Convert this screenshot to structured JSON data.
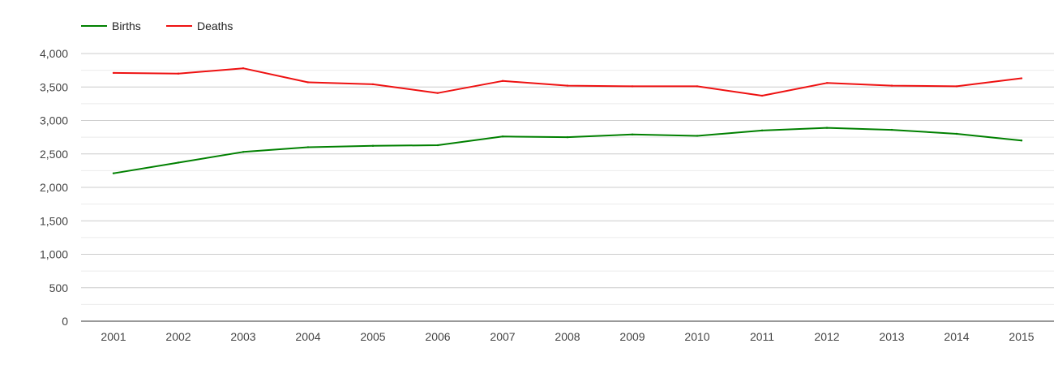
{
  "chart_data": {
    "type": "line",
    "x": [
      "2001",
      "2002",
      "2003",
      "2004",
      "2005",
      "2006",
      "2007",
      "2008",
      "2009",
      "2010",
      "2011",
      "2012",
      "2013",
      "2014",
      "2015"
    ],
    "series": [
      {
        "name": "Births",
        "color": "#008000",
        "values": [
          2210,
          2370,
          2530,
          2600,
          2620,
          2630,
          2760,
          2750,
          2790,
          2770,
          2850,
          2890,
          2860,
          2800,
          2700
        ]
      },
      {
        "name": "Deaths",
        "color": "#ee1111",
        "values": [
          3710,
          3700,
          3780,
          3570,
          3540,
          3410,
          3590,
          3520,
          3510,
          3510,
          3370,
          3560,
          3520,
          3510,
          3630
        ]
      }
    ],
    "ylim": [
      0,
      4000
    ],
    "yticks": [
      "0",
      "500",
      "1,000",
      "1,500",
      "2,000",
      "2,500",
      "3,000",
      "3,500",
      "4,000"
    ],
    "grid": true,
    "legend": "top-left"
  }
}
